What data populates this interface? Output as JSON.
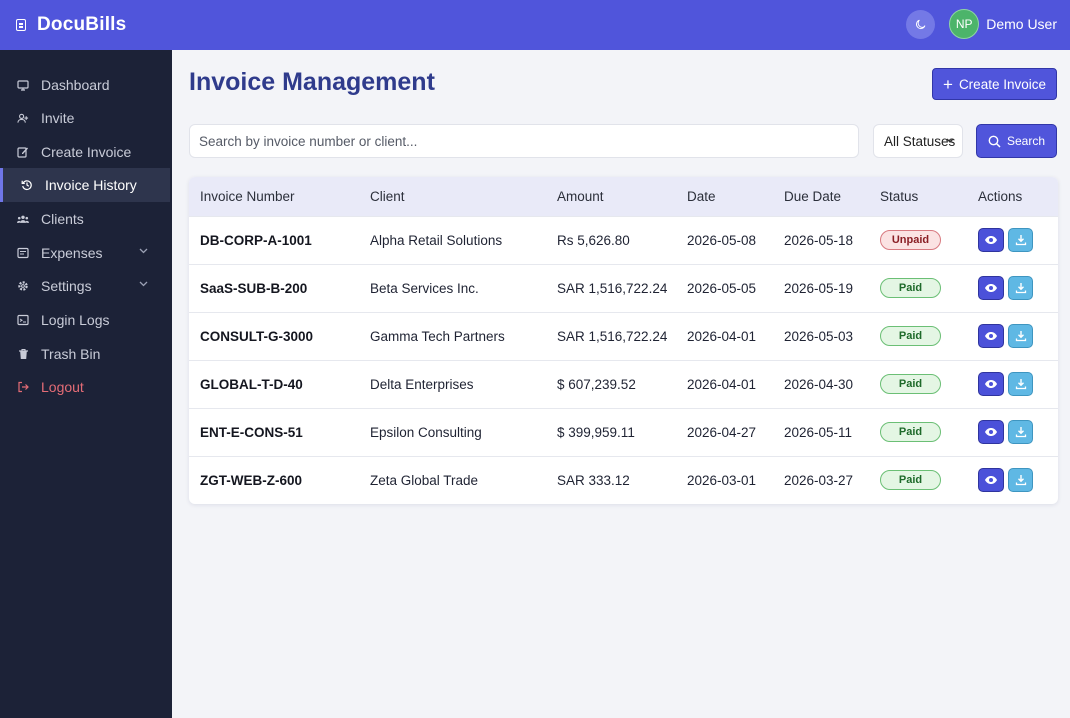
{
  "app": {
    "name": "DocuBills"
  },
  "user": {
    "initials": "NP",
    "name": "Demo User"
  },
  "colors": {
    "primary": "#5055db",
    "sidebar": "#1c2237",
    "paid": "#1e6a2a",
    "unpaid": "#8a1f25",
    "logout": "#e46c76"
  },
  "sidebar": {
    "items": [
      {
        "label": "Dashboard",
        "icon": "monitor-icon"
      },
      {
        "label": "Invite",
        "icon": "user-plus-icon"
      },
      {
        "label": "Create Invoice",
        "icon": "edit-icon"
      },
      {
        "label": "Invoice History",
        "icon": "history-icon",
        "active": true
      },
      {
        "label": "Clients",
        "icon": "users-icon"
      },
      {
        "label": "Expenses",
        "icon": "wallet-icon",
        "expandable": true
      },
      {
        "label": "Settings",
        "icon": "gear-icon",
        "expandable": true
      },
      {
        "label": "Login Logs",
        "icon": "log-icon"
      },
      {
        "label": "Trash Bin",
        "icon": "trash-icon"
      },
      {
        "label": "Logout",
        "icon": "logout-icon"
      }
    ]
  },
  "main": {
    "title": "Invoice Management",
    "create_label": "Create Invoice",
    "search_placeholder": "Search by invoice number or client...",
    "status_filter": "All Statuses",
    "search_label": "Search"
  },
  "table": {
    "headers": [
      "Invoice Number",
      "Client",
      "Amount",
      "Date",
      "Due Date",
      "Status",
      "Actions"
    ],
    "rows": [
      {
        "number": "DB-CORP-A-1001",
        "client": "Alpha Retail Solutions",
        "amount": "Rs 5,626.80",
        "date": "2026-05-08",
        "due": "2026-05-18",
        "status": "Unpaid"
      },
      {
        "number": "SaaS-SUB-B-200",
        "client": "Beta Services Inc.",
        "amount": "SAR 1,516,722.24",
        "date": "2026-05-05",
        "due": "2026-05-19",
        "status": "Paid"
      },
      {
        "number": "CONSULT-G-3000",
        "client": "Gamma Tech Partners",
        "amount": "SAR 1,516,722.24",
        "date": "2026-04-01",
        "due": "2026-05-03",
        "status": "Paid"
      },
      {
        "number": "GLOBAL-T-D-40",
        "client": "Delta Enterprises",
        "amount": "$ 607,239.52",
        "date": "2026-04-01",
        "due": "2026-04-30",
        "status": "Paid"
      },
      {
        "number": "ENT-E-CONS-51",
        "client": "Epsilon Consulting",
        "amount": "$ 399,959.11",
        "date": "2026-04-27",
        "due": "2026-05-11",
        "status": "Paid"
      },
      {
        "number": "ZGT-WEB-Z-600",
        "client": "Zeta Global Trade",
        "amount": "SAR 333.12",
        "date": "2026-03-01",
        "due": "2026-03-27",
        "status": "Paid"
      }
    ]
  }
}
